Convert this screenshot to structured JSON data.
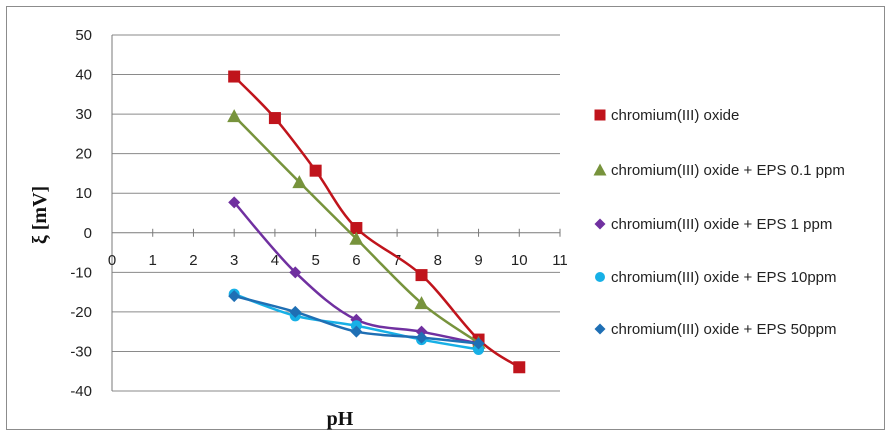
{
  "chart_data": {
    "type": "scatter",
    "title": "",
    "xlabel": "pH",
    "ylabel": "ξ [mV]",
    "xlim": [
      0,
      11
    ],
    "ylim": [
      -40,
      50
    ],
    "x_ticks": [
      "0",
      "1",
      "2",
      "3",
      "4",
      "5",
      "6",
      "7",
      "8",
      "9",
      "10",
      "11"
    ],
    "y_ticks": [
      "50",
      "40",
      "30",
      "20",
      "10",
      "0",
      "-10",
      "-20",
      "-30",
      "-40"
    ],
    "grid": "horizontal",
    "legend_position": "right",
    "series": [
      {
        "name": "chromium(III) oxide",
        "color": "#c0141c",
        "marker": "square",
        "x": [
          3,
          4,
          5,
          6,
          7.6,
          9,
          10
        ],
        "y": [
          39.5,
          29,
          15.7,
          1.2,
          -10.7,
          -27,
          -34
        ]
      },
      {
        "name": "chromium(III) oxide + EPS 0.1 ppm",
        "color": "#77933c",
        "marker": "triangle",
        "x": [
          3,
          4.6,
          6,
          7.6,
          9
        ],
        "y": [
          29.5,
          12.8,
          -1.5,
          -17.8,
          -27.8
        ]
      },
      {
        "name": "chromium(III) oxide + EPS 1 ppm",
        "color": "#7030a0",
        "marker": "diamond",
        "x": [
          3,
          4.5,
          6,
          7.6,
          9
        ],
        "y": [
          7.7,
          -10,
          -22,
          -25,
          -28
        ]
      },
      {
        "name": "chromium(III) oxide + EPS 10ppm",
        "color": "#17b0e6",
        "marker": "circle",
        "x": [
          3,
          4.5,
          6,
          7.6,
          9
        ],
        "y": [
          -15.5,
          -21,
          -23.5,
          -27,
          -29.5
        ]
      },
      {
        "name": "chromium(III) oxide + EPS 50ppm",
        "color": "#1f6fb4",
        "marker": "diamond",
        "x": [
          3,
          4.5,
          6,
          7.6,
          9
        ],
        "y": [
          -16,
          -20,
          -25,
          -26.5,
          -28
        ]
      }
    ]
  }
}
